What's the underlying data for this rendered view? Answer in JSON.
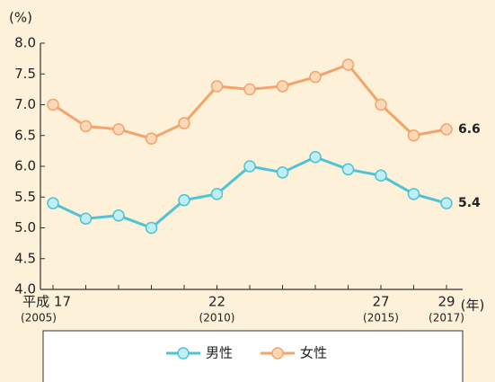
{
  "chart_data": {
    "type": "line",
    "y_label": "(%)",
    "x_label": "(年)",
    "categories": [
      "平成 17",
      null,
      null,
      null,
      null,
      "22",
      null,
      null,
      null,
      null,
      "27",
      null,
      "29"
    ],
    "x_sublabels": [
      "(2005)",
      null,
      null,
      null,
      null,
      "(2010)",
      null,
      null,
      null,
      null,
      "(2015)",
      null,
      "(2017)"
    ],
    "series": [
      {
        "name": "男性",
        "color": "#4fc3d3",
        "marker_fill": "#bfeef5",
        "values": [
          5.4,
          5.15,
          5.2,
          5.0,
          5.45,
          5.55,
          6.0,
          5.9,
          6.15,
          5.95,
          5.85,
          5.55,
          5.4
        ],
        "value_labels": [
          null,
          null,
          null,
          null,
          null,
          null,
          null,
          null,
          null,
          null,
          null,
          null,
          "5.4"
        ]
      },
      {
        "name": "女性",
        "color": "#f4a46b",
        "marker_fill": "#fbd8b8",
        "values": [
          7.0,
          6.65,
          6.6,
          6.45,
          6.7,
          7.3,
          7.25,
          7.3,
          7.45,
          7.65,
          7.0,
          6.5,
          6.6
        ],
        "value_labels": [
          null,
          null,
          null,
          null,
          null,
          null,
          null,
          null,
          null,
          null,
          null,
          null,
          "6.6"
        ]
      }
    ],
    "ylim": [
      4.0,
      8.0
    ],
    "yticks": [
      {
        "value": 4.0,
        "label": "4.0"
      },
      {
        "value": 4.5,
        "label": "4.5"
      },
      {
        "value": 5.0,
        "label": "5.0"
      },
      {
        "value": 5.5,
        "label": "5.5"
      },
      {
        "value": 6.0,
        "label": "6.0"
      },
      {
        "value": 6.5,
        "label": "6.5"
      },
      {
        "value": 7.0,
        "label": "7.0"
      },
      {
        "value": 7.5,
        "label": "7.5"
      },
      {
        "value": 8.0,
        "label": "8.0"
      }
    ],
    "legend": "bottom"
  }
}
